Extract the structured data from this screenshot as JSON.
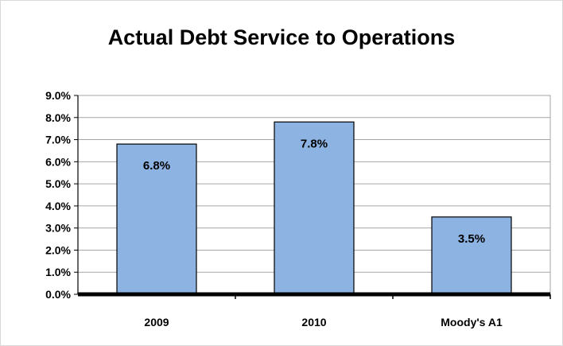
{
  "chart_data": {
    "type": "bar",
    "title": "Actual Debt Service to Operations",
    "categories": [
      "2009",
      "2010",
      "Moody's A1"
    ],
    "values": [
      6.8,
      7.8,
      3.5
    ],
    "data_labels": [
      "6.8%",
      "7.8%",
      "3.5%"
    ],
    "xlabel": "",
    "ylabel": "",
    "ylim": [
      0,
      9
    ],
    "yticks": [
      "0.0%",
      "1.0%",
      "2.0%",
      "3.0%",
      "4.0%",
      "5.0%",
      "6.0%",
      "7.0%",
      "8.0%",
      "9.0%"
    ],
    "grid": true,
    "legend": "none",
    "bar_color": "#8db3e2",
    "bar_edge_color": "#000000"
  }
}
